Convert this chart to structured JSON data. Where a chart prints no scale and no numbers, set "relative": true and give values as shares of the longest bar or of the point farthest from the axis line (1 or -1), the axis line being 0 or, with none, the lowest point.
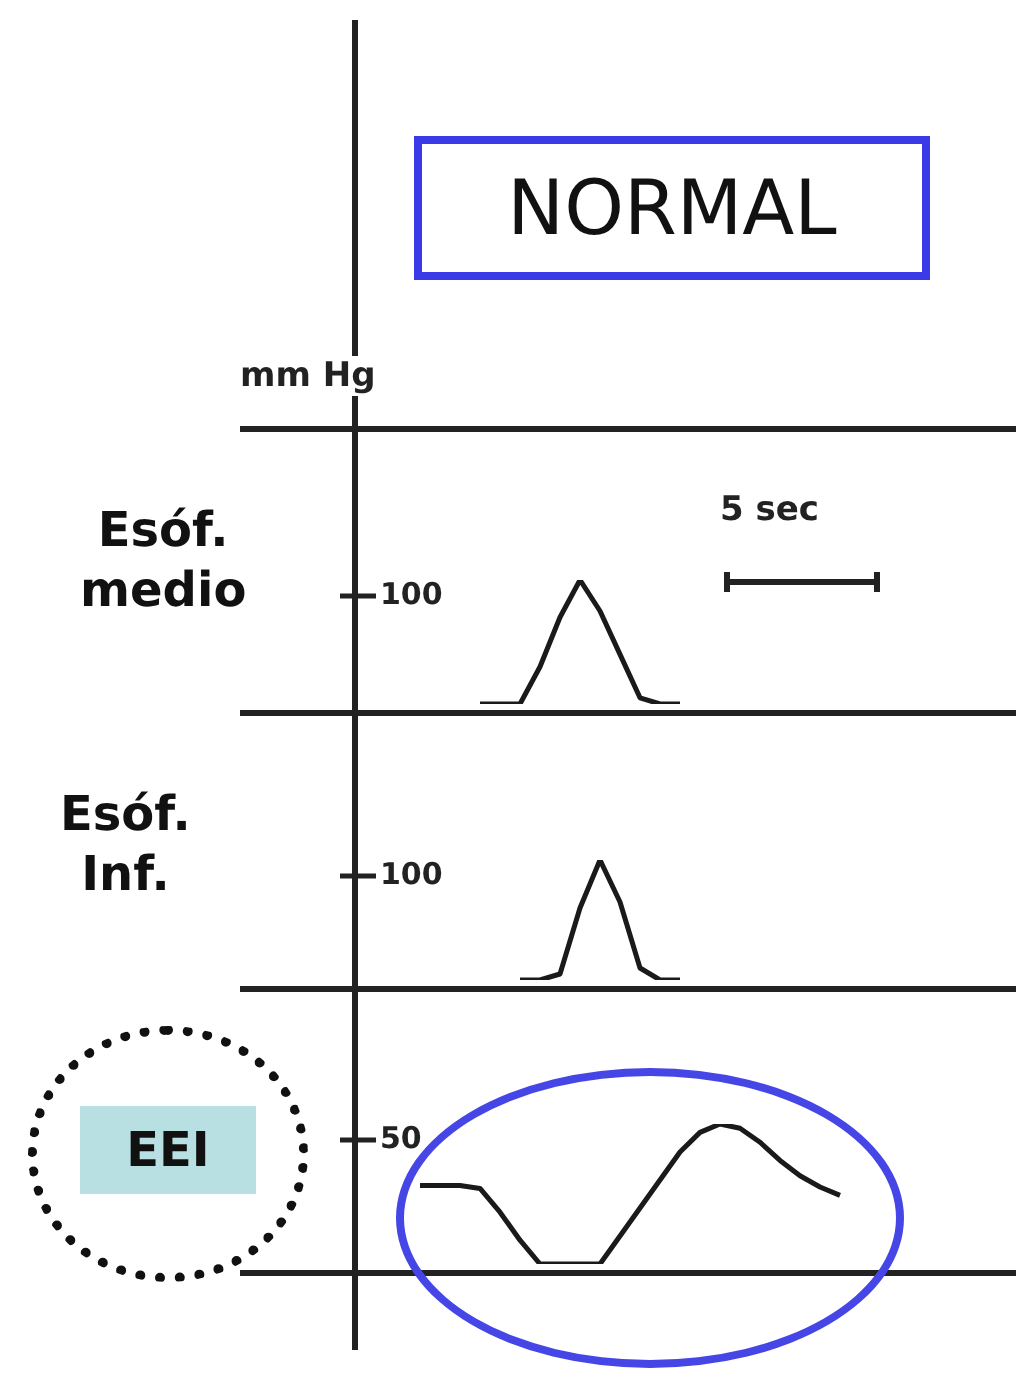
{
  "chart_data": [
    {
      "type": "other",
      "title": "NORMAL",
      "annotations": [
        "mm Hg"
      ]
    },
    {
      "type": "line",
      "ylabel": "Esóf.\nmedio",
      "relative": true,
      "annotations": [
        "100",
        "5 sec"
      ],
      "marker": "none",
      "categories": [
        null,
        null,
        null,
        null,
        null,
        null,
        null,
        null,
        null,
        null,
        null,
        null,
        null,
        null,
        null,
        null,
        null,
        null,
        null,
        null,
        null,
        null,
        null,
        null,
        null,
        null,
        null,
        null,
        null,
        null,
        null,
        null,
        null
      ],
      "series": [
        {
          "color": "#1a1a1a",
          "values": [
            null,
            null,
            null,
            null,
            null,
            null,
            0,
            0,
            0,
            0.3,
            0.7,
            1,
            0.75,
            0.4,
            0.05,
            0,
            0,
            null,
            null,
            null,
            null,
            null,
            null,
            null,
            null,
            null,
            null,
            null,
            null,
            null,
            null,
            null,
            null
          ]
        }
      ]
    },
    {
      "type": "line",
      "ylabel": "Esóf.\nInf.",
      "relative": true,
      "annotations": [
        "100"
      ],
      "marker": "none",
      "categories": [
        null,
        null,
        null,
        null,
        null,
        null,
        null,
        null,
        null,
        null,
        null,
        null,
        null,
        null,
        null,
        null,
        null,
        null,
        null,
        null,
        null,
        null,
        null,
        null,
        null,
        null,
        null,
        null,
        null,
        null,
        null,
        null,
        null
      ],
      "series": [
        {
          "color": "#1a1a1a",
          "values": [
            null,
            null,
            null,
            null,
            null,
            null,
            null,
            null,
            0,
            0,
            0.05,
            0.6,
            1,
            0.65,
            0.1,
            0,
            0,
            null,
            null,
            null,
            null,
            null,
            null,
            null,
            null,
            null,
            null,
            null,
            null,
            null,
            null,
            null,
            null
          ]
        }
      ]
    },
    {
      "type": "line",
      "ylabel": "EEI",
      "relative": true,
      "annotations": [
        "50"
      ],
      "marker": "none",
      "categories": [
        null,
        null,
        null,
        null,
        null,
        null,
        null,
        null,
        null,
        null,
        null,
        null,
        null,
        null,
        null,
        null,
        null,
        null,
        null,
        null,
        null,
        null,
        null,
        null,
        null,
        null,
        null,
        null,
        null,
        null,
        null,
        null,
        null
      ],
      "series": [
        {
          "color": "#1a1a1a",
          "values": [
            null,
            null,
            null,
            0.56,
            0.56,
            0.56,
            0.54,
            0.37,
            0.17,
            0,
            0,
            0,
            0,
            0.2,
            0.4,
            0.6,
            0.8,
            0.94,
            1,
            0.97,
            0.87,
            0.74,
            0.63,
            0.55,
            0.49,
            null,
            null,
            null,
            null,
            null,
            null,
            null,
            null
          ]
        }
      ]
    }
  ]
}
